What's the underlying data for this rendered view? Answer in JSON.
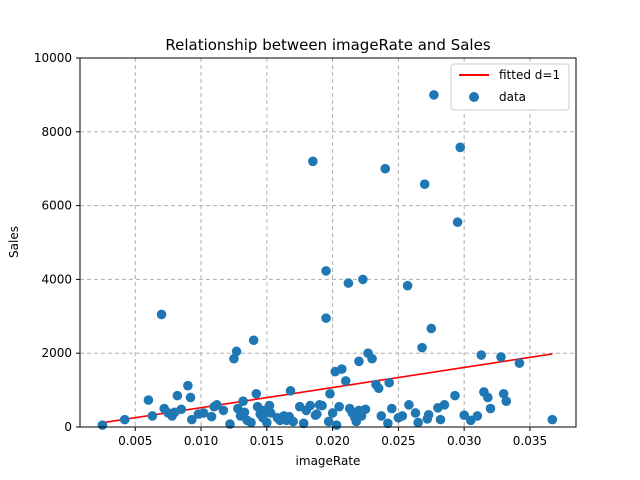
{
  "chart_data": {
    "type": "scatter",
    "title": "Relationship between imageRate and Sales",
    "xlabel": "imageRate",
    "ylabel": "Sales",
    "xlim": [
      0.0008,
      0.0385
    ],
    "ylim": [
      0,
      10000
    ],
    "xticks": [
      0.005,
      0.01,
      0.015,
      0.02,
      0.025,
      0.03,
      0.035
    ],
    "xtick_labels": [
      "0.005",
      "0.010",
      "0.015",
      "0.020",
      "0.025",
      "0.030",
      "0.035"
    ],
    "yticks": [
      0,
      2000,
      4000,
      6000,
      8000,
      10000
    ],
    "ytick_labels": [
      "0",
      "2000",
      "4000",
      "6000",
      "8000",
      "10000"
    ],
    "grid": true,
    "legend": {
      "position": "top-right",
      "entries": [
        {
          "label": "fitted d=1",
          "kind": "line",
          "color": "#ff0000"
        },
        {
          "label": "data",
          "kind": "marker",
          "color": "#1f77b4"
        }
      ]
    },
    "series": [
      {
        "name": "fitted d=1",
        "kind": "line",
        "color": "#ff0000",
        "x": [
          0.0024,
          0.0367
        ],
        "y": [
          110,
          1980
        ]
      },
      {
        "name": "data",
        "kind": "scatter",
        "color": "#1f77b4",
        "x": [
          0.0025,
          0.0042,
          0.006,
          0.0063,
          0.007,
          0.0072,
          0.0075,
          0.0078,
          0.008,
          0.0082,
          0.0085,
          0.009,
          0.0092,
          0.0093,
          0.0098,
          0.0102,
          0.0108,
          0.011,
          0.0112,
          0.0117,
          0.0122,
          0.0125,
          0.0127,
          0.0128,
          0.013,
          0.0132,
          0.0133,
          0.0135,
          0.0138,
          0.014,
          0.0142,
          0.0143,
          0.0145,
          0.0147,
          0.0148,
          0.015,
          0.0152,
          0.0153,
          0.0158,
          0.016,
          0.0163,
          0.0165,
          0.0167,
          0.0168,
          0.017,
          0.0175,
          0.0178,
          0.018,
          0.0183,
          0.0185,
          0.0187,
          0.0188,
          0.019,
          0.0192,
          0.0195,
          0.0195,
          0.0197,
          0.0198,
          0.02,
          0.0202,
          0.0203,
          0.0205,
          0.0207,
          0.021,
          0.0212,
          0.0213,
          0.0215,
          0.0217,
          0.0218,
          0.022,
          0.022,
          0.0222,
          0.0223,
          0.0225,
          0.0227,
          0.023,
          0.0233,
          0.0235,
          0.0237,
          0.024,
          0.0242,
          0.0243,
          0.0245,
          0.025,
          0.0253,
          0.0257,
          0.0258,
          0.0263,
          0.0265,
          0.0268,
          0.027,
          0.0272,
          0.0273,
          0.0275,
          0.0277,
          0.028,
          0.0282,
          0.0285,
          0.0293,
          0.0295,
          0.0297,
          0.03,
          0.0305,
          0.031,
          0.0313,
          0.0315,
          0.0318,
          0.032,
          0.0328,
          0.033,
          0.0332,
          0.0342,
          0.0367
        ],
        "y": [
          50,
          200,
          730,
          300,
          3050,
          500,
          380,
          300,
          400,
          850,
          480,
          1120,
          800,
          200,
          350,
          380,
          280,
          550,
          600,
          450,
          80,
          1850,
          2050,
          500,
          300,
          700,
          400,
          180,
          120,
          2350,
          900,
          550,
          350,
          250,
          450,
          120,
          580,
          380,
          250,
          180,
          300,
          180,
          280,
          980,
          150,
          550,
          100,
          450,
          580,
          7200,
          320,
          350,
          600,
          580,
          2950,
          4230,
          150,
          900,
          380,
          1500,
          50,
          550,
          1570,
          1250,
          3900,
          500,
          380,
          250,
          150,
          1780,
          450,
          300,
          4000,
          480,
          2000,
          1850,
          1150,
          1050,
          300,
          7000,
          100,
          1200,
          500,
          250,
          300,
          3830,
          600,
          380,
          120,
          2150,
          6580,
          220,
          330,
          2670,
          9000,
          520,
          200,
          600,
          850,
          5550,
          7580,
          320,
          180,
          300,
          1950,
          950,
          800,
          500,
          1900,
          900,
          700,
          1730,
          200
        ]
      }
    ]
  }
}
